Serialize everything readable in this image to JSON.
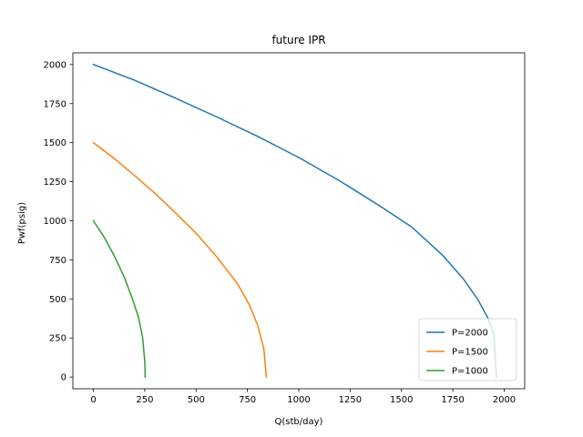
{
  "chart_data": {
    "type": "line",
    "title": "future IPR",
    "xlabel": "Q(stb/day)",
    "ylabel": "Pwf(psig)",
    "xlim": [
      -100,
      2100
    ],
    "ylim": [
      -75,
      2075
    ],
    "xticks": [
      0,
      250,
      500,
      750,
      1000,
      1250,
      1500,
      1750,
      2000
    ],
    "yticks": [
      0,
      250,
      500,
      750,
      1000,
      1250,
      1500,
      1750,
      2000
    ],
    "grid": false,
    "legend_position": "lower right",
    "series": [
      {
        "name": "P=2000",
        "color": "#1f77b4",
        "points": [
          [
            0,
            2000
          ],
          [
            200,
            1900
          ],
          [
            400,
            1785
          ],
          [
            600,
            1665
          ],
          [
            800,
            1540
          ],
          [
            1000,
            1405
          ],
          [
            1200,
            1255
          ],
          [
            1400,
            1090
          ],
          [
            1550,
            960
          ],
          [
            1700,
            780
          ],
          [
            1800,
            630
          ],
          [
            1870,
            500
          ],
          [
            1920,
            380
          ],
          [
            1950,
            270
          ],
          [
            1962,
            0
          ]
        ]
      },
      {
        "name": "P=1500",
        "color": "#ff7f0e",
        "points": [
          [
            0,
            1500
          ],
          [
            100,
            1400
          ],
          [
            200,
            1290
          ],
          [
            300,
            1175
          ],
          [
            400,
            1050
          ],
          [
            500,
            920
          ],
          [
            600,
            770
          ],
          [
            700,
            600
          ],
          [
            760,
            460
          ],
          [
            800,
            330
          ],
          [
            830,
            180
          ],
          [
            842,
            0
          ]
        ]
      },
      {
        "name": "P=1000",
        "color": "#2ca02c",
        "points": [
          [
            0,
            1000
          ],
          [
            50,
            900
          ],
          [
            100,
            780
          ],
          [
            150,
            640
          ],
          [
            190,
            500
          ],
          [
            220,
            380
          ],
          [
            240,
            250
          ],
          [
            250,
            100
          ],
          [
            252,
            0
          ]
        ]
      }
    ]
  }
}
